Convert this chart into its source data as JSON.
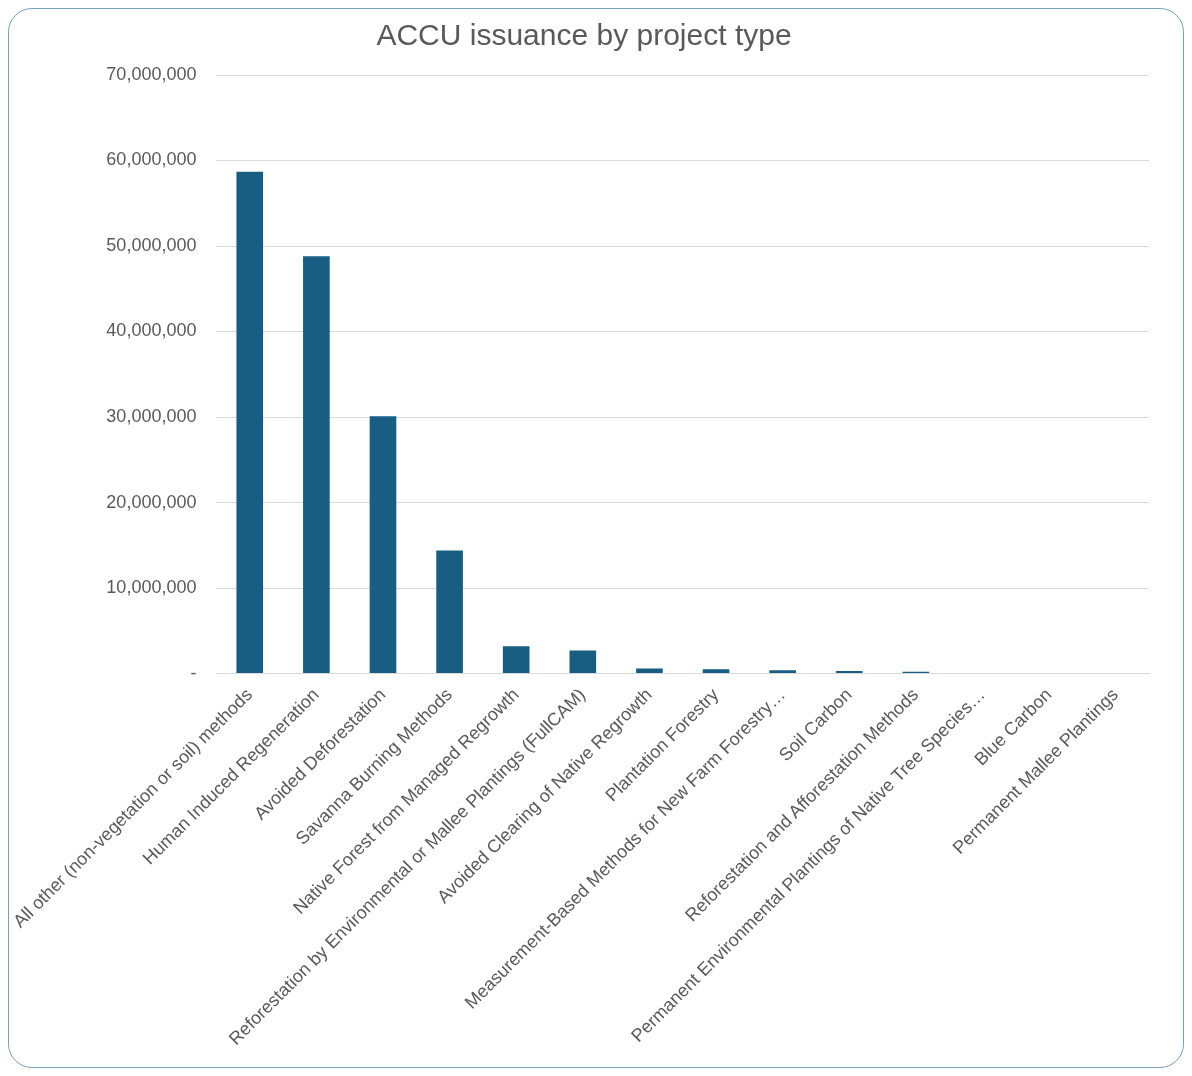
{
  "chart_data": {
    "type": "bar",
    "title": "ACCU issuance by project type",
    "categories": [
      "All other (non-vegetation or soil) methods",
      "Human Induced Regeneration",
      "Avoided Deforestation",
      "Savanna Burning Methods",
      "Native Forest from Managed Regrowth",
      "Reforestation by Environmental or Mallee Plantings (FullCAM)",
      "Avoided Clearing of Native Regrowth",
      "Plantation Forestry",
      "Measurement-Based Methods for New Farm Forestry…",
      "Soil Carbon",
      "Reforestation and Afforestation Methods",
      "Permanent Environmental Plantings of Native Tree Species…",
      "Blue Carbon",
      "Permanent Mallee Plantings"
    ],
    "values": [
      58700000,
      48800000,
      30100000,
      14400000,
      3200000,
      2700000,
      600000,
      500000,
      400000,
      300000,
      200000,
      0,
      0,
      0
    ],
    "color": "#175e82",
    "ylim": [
      0,
      70000000
    ],
    "yticks": [
      {
        "value": 0,
        "label": "-"
      },
      {
        "value": 10000000,
        "label": "10,000,000"
      },
      {
        "value": 20000000,
        "label": "20,000,000"
      },
      {
        "value": 30000000,
        "label": "30,000,000"
      },
      {
        "value": 40000000,
        "label": "40,000,000"
      },
      {
        "value": 50000000,
        "label": "50,000,000"
      },
      {
        "value": 60000000,
        "label": "60,000,000"
      },
      {
        "value": 70000000,
        "label": "70,000,000"
      }
    ],
    "grid": "y",
    "legend": false
  }
}
